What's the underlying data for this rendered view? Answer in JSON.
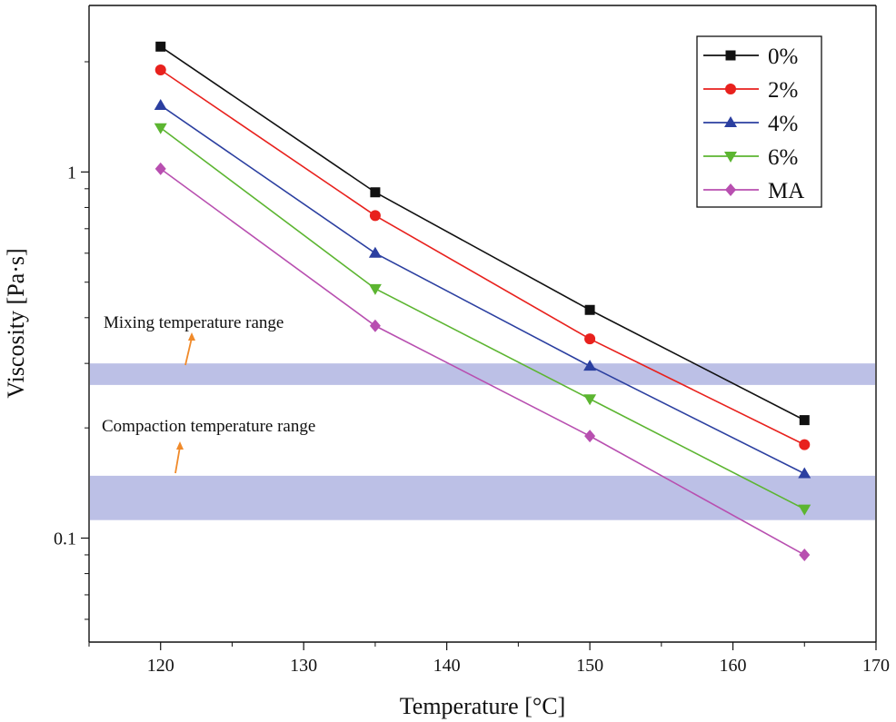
{
  "chart_data": {
    "type": "line",
    "title": "",
    "xlabel": "Temperature [°C]",
    "ylabel": "Viscosity [Pa·s]",
    "yscale": "log",
    "xlim": [
      115,
      170
    ],
    "ylim": [
      0.052,
      2.85
    ],
    "x_ticks": [
      120,
      130,
      140,
      150,
      160,
      170
    ],
    "y_ticks": [
      {
        "value": 1,
        "label": "1"
      },
      {
        "value": 0.1,
        "label": "0.1"
      }
    ],
    "x": [
      120,
      135,
      150,
      165
    ],
    "series": [
      {
        "name": "0%",
        "color": "#111111",
        "marker": "square",
        "values": [
          2.2,
          0.88,
          0.42,
          0.21
        ]
      },
      {
        "name": "2%",
        "color": "#e8211d",
        "marker": "circle",
        "values": [
          1.9,
          0.76,
          0.35,
          0.18
        ]
      },
      {
        "name": "4%",
        "color": "#2b3fa0",
        "marker": "triangle-up",
        "values": [
          1.52,
          0.6,
          0.295,
          0.15
        ]
      },
      {
        "name": "6%",
        "color": "#5cb531",
        "marker": "triangle-down",
        "values": [
          1.32,
          0.48,
          0.24,
          0.12
        ]
      },
      {
        "name": "MA",
        "color": "#b84fb0",
        "marker": "diamond",
        "values": [
          1.02,
          0.38,
          0.19,
          0.09
        ]
      }
    ],
    "bands": [
      {
        "name": "mixing-band",
        "label": "Mixing temperature range",
        "ymin": 0.262,
        "ymax": 0.3,
        "color": "#bcc0e6"
      },
      {
        "name": "compaction-band",
        "label": "Compaction temperature range",
        "ymin": 0.112,
        "ymax": 0.148,
        "color": "#bcc0e6"
      }
    ],
    "legend_position": "top-right",
    "grid": false
  }
}
